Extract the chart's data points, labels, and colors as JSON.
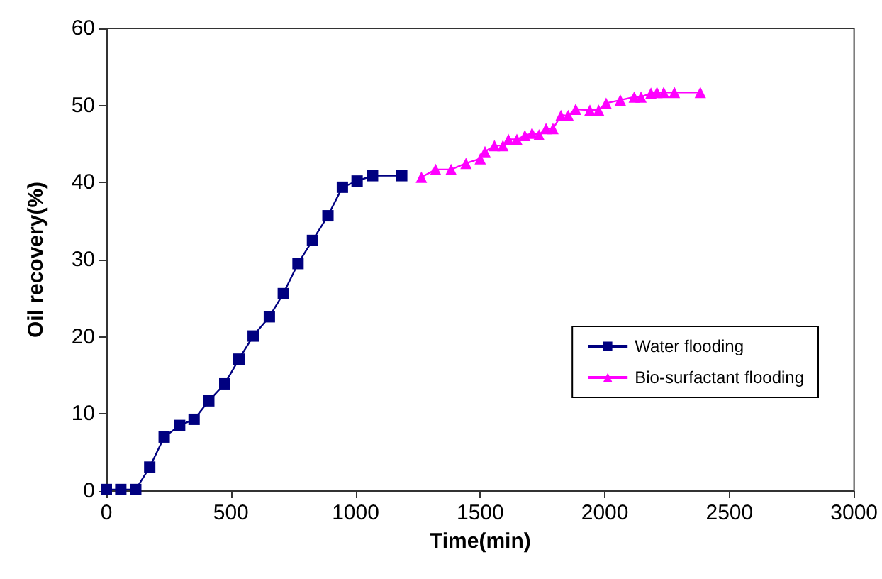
{
  "chart_data": {
    "type": "line",
    "xlabel": "Time(min)",
    "ylabel": "Oil recovery(%)",
    "xlim": [
      0,
      3000
    ],
    "xticks": [
      0,
      500,
      1000,
      1500,
      2000,
      2500,
      3000
    ],
    "ylim": [
      0,
      60
    ],
    "yticks": [
      0,
      10,
      20,
      30,
      40,
      50,
      60
    ],
    "grid": false,
    "legend": "right",
    "line_style": "solid",
    "series": [
      {
        "name": "Water flooding",
        "color": "#000080",
        "marker": "square",
        "x": [
          0,
          58,
          118,
          174,
          232,
          294,
          352,
          411,
          475,
          532,
          589,
          654,
          710,
          769,
          827,
          889,
          947,
          1006,
          1068,
          1185
        ],
        "values": [
          0.2,
          0.2,
          0.2,
          3.1,
          7.0,
          8.5,
          9.3,
          11.7,
          13.9,
          17.1,
          20.1,
          22.6,
          25.6,
          29.5,
          32.5,
          35.7,
          39.4,
          40.2,
          40.9,
          40.9
        ]
      },
      {
        "name": "Bio-surfactant flooding",
        "color": "#ff00ff",
        "marker": "triangle",
        "x": [
          1264,
          1321,
          1383,
          1443,
          1500,
          1519,
          1557,
          1591,
          1613,
          1647,
          1679,
          1708,
          1736,
          1764,
          1792,
          1824,
          1853,
          1883,
          1940,
          1975,
          2005,
          2062,
          2118,
          2145,
          2185,
          2209,
          2236,
          2279,
          2383
        ],
        "values": [
          40.7,
          41.7,
          41.7,
          42.5,
          43.1,
          44.0,
          44.8,
          44.8,
          45.6,
          45.6,
          46.1,
          46.4,
          46.2,
          47.0,
          47.0,
          48.7,
          48.7,
          49.5,
          49.4,
          49.4,
          50.3,
          50.7,
          51.1,
          51.1,
          51.6,
          51.7,
          51.7,
          51.7,
          51.7
        ]
      }
    ]
  }
}
